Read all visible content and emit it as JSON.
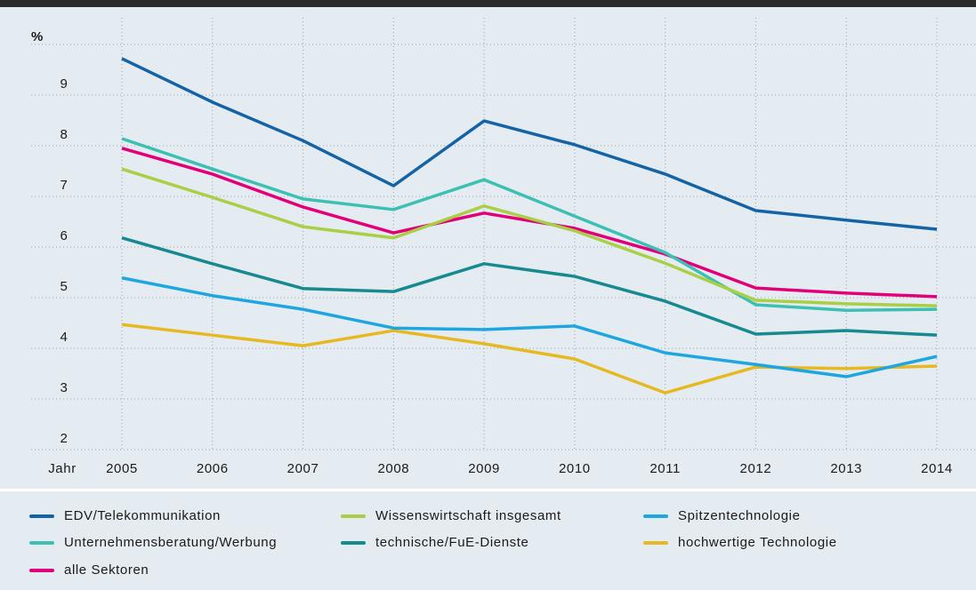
{
  "chart_data": {
    "type": "line",
    "y_label": "%",
    "x_label": "Jahr",
    "x": [
      2005,
      2006,
      2007,
      2008,
      2009,
      2010,
      2011,
      2012,
      2013,
      2014
    ],
    "ylim": [
      2,
      10
    ],
    "yticks": [
      2,
      3,
      4,
      5,
      6,
      7,
      8,
      9
    ],
    "grid": true,
    "series": [
      {
        "name": "EDV/Telekommunikation",
        "color": "#1464a5",
        "values": [
          9.72,
          8.86,
          8.1,
          7.21,
          8.49,
          8.02,
          7.44,
          6.72,
          6.53,
          6.35
        ]
      },
      {
        "name": "Wissenswirtschaft insgesamt",
        "color": "#a8cf45",
        "values": [
          7.54,
          6.98,
          6.4,
          6.18,
          6.81,
          6.32,
          5.68,
          4.95,
          4.88,
          4.84
        ]
      },
      {
        "name": "Spitzentechnologie",
        "color": "#1ea6e0",
        "values": [
          5.39,
          5.04,
          4.77,
          4.4,
          4.37,
          4.44,
          3.91,
          3.68,
          3.44,
          3.84
        ]
      },
      {
        "name": "Unternehmensberatung/Werbung",
        "color": "#3cc0b4",
        "values": [
          8.14,
          7.54,
          6.95,
          6.74,
          7.33,
          6.61,
          5.89,
          4.86,
          4.75,
          4.77
        ]
      },
      {
        "name": "technische/FuE-Dienste",
        "color": "#168a90",
        "values": [
          6.18,
          5.67,
          5.18,
          5.12,
          5.67,
          5.42,
          4.93,
          4.28,
          4.35,
          4.26
        ]
      },
      {
        "name": "hochwertige Technologie",
        "color": "#e6b922",
        "values": [
          4.47,
          4.26,
          4.05,
          4.35,
          4.09,
          3.79,
          3.12,
          3.63,
          3.6,
          3.65
        ]
      },
      {
        "name": "alle Sektoren",
        "color": "#e2007a",
        "values": [
          7.95,
          7.44,
          6.79,
          6.28,
          6.67,
          6.37,
          5.86,
          5.19,
          5.09,
          5.02
        ]
      }
    ]
  }
}
